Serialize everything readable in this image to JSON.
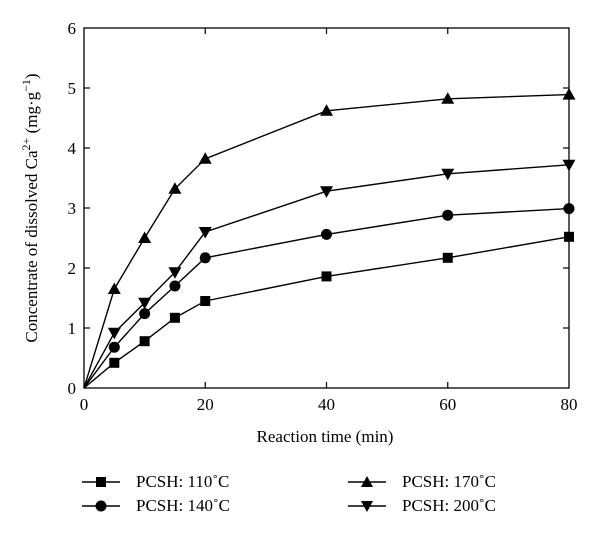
{
  "chart_data": {
    "type": "line",
    "x": [
      0,
      5,
      10,
      15,
      20,
      40,
      60,
      80
    ],
    "xlabel": "Reaction time (min)",
    "ylabel_main": "Concentrate of dissolved Ca",
    "ylabel_sup": "2+",
    "ylabel_unit_open": " (mg·g",
    "ylabel_unit_sup": "−1",
    "ylabel_unit_close": ")",
    "xlim": [
      0,
      80
    ],
    "ylim": [
      0,
      6
    ],
    "xticks": [
      "0",
      "20",
      "40",
      "60",
      "80"
    ],
    "yticks": [
      "0",
      "1",
      "2",
      "3",
      "4",
      "5",
      "6"
    ],
    "grid": false,
    "legend_position": "bottom",
    "series": [
      {
        "name": "PCSH: 110˚C",
        "marker": "square",
        "values": [
          0,
          0.42,
          0.78,
          1.17,
          1.45,
          1.86,
          2.17,
          2.52
        ]
      },
      {
        "name": "PCSH: 140˚C",
        "marker": "circle",
        "values": [
          0,
          0.68,
          1.24,
          1.7,
          2.17,
          2.56,
          2.88,
          2.99
        ]
      },
      {
        "name": "PCSH: 170˚C",
        "marker": "triangle-up",
        "values": [
          0,
          1.65,
          2.5,
          3.32,
          3.82,
          4.62,
          4.82,
          4.89
        ]
      },
      {
        "name": "PCSH: 200˚C",
        "marker": "triangle-down",
        "values": [
          0,
          0.92,
          1.42,
          1.93,
          2.6,
          3.28,
          3.57,
          3.72
        ]
      }
    ]
  }
}
